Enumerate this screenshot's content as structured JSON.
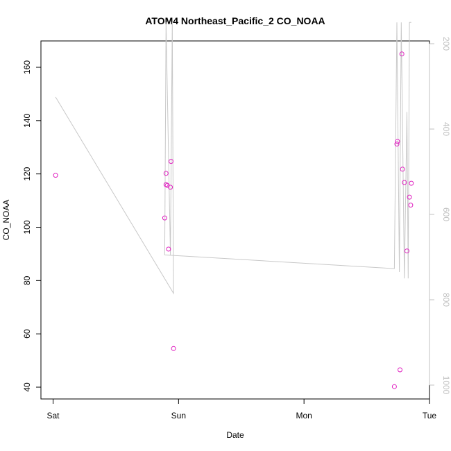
{
  "chart_data": {
    "type": "scatter",
    "title": "ATOM4 Northeast_Pacific_2 CO_NOAA",
    "xlabel": "Date",
    "ylabel": "CO_NOAA",
    "x_ticks": [
      "Sat",
      "Sun",
      "Mon",
      "Tue"
    ],
    "x_range_days": [
      0,
      3
    ],
    "ylim": [
      35,
      170
    ],
    "y_ticks": [
      40,
      60,
      80,
      100,
      120,
      140,
      160
    ],
    "y2_ticks": [
      200,
      400,
      600,
      800,
      1000
    ],
    "y2lim": [
      200,
      1040
    ],
    "y2_reversed": true,
    "grid": false,
    "series": [
      {
        "kind": "points",
        "color": "#e020c0",
        "points": [
          [
            0.02,
            119.5
          ],
          [
            0.89,
            103.5
          ],
          [
            0.9,
            120.2
          ],
          [
            0.9,
            116
          ],
          [
            0.91,
            115.7
          ],
          [
            0.92,
            91.8
          ],
          [
            0.94,
            124.7
          ],
          [
            0.935,
            115
          ],
          [
            0.96,
            54.5
          ],
          [
            2.72,
            40.2
          ],
          [
            2.74,
            131.2
          ],
          [
            2.745,
            132.2
          ],
          [
            2.765,
            46.5
          ],
          [
            2.78,
            165
          ],
          [
            2.785,
            121.8
          ],
          [
            2.8,
            116.8
          ],
          [
            2.82,
            91.1
          ],
          [
            2.84,
            111.3
          ],
          [
            2.85,
            108.3
          ],
          [
            2.855,
            116.5
          ]
        ]
      },
      {
        "kind": "line",
        "axis": "right",
        "color": "#c8c8c8",
        "points": [
          [
            0.02,
            325
          ],
          [
            0.96,
            785
          ],
          [
            0.95,
            150
          ],
          [
            0.935,
            695
          ],
          [
            0.9,
            150
          ],
          [
            0.89,
            695
          ],
          [
            2.72,
            727
          ],
          [
            2.74,
            150
          ],
          [
            2.76,
            735
          ],
          [
            2.775,
            150
          ],
          [
            2.8,
            750
          ],
          [
            2.82,
            360
          ],
          [
            2.83,
            750
          ],
          [
            2.84,
            150
          ],
          [
            2.855,
            150
          ]
        ]
      }
    ]
  }
}
